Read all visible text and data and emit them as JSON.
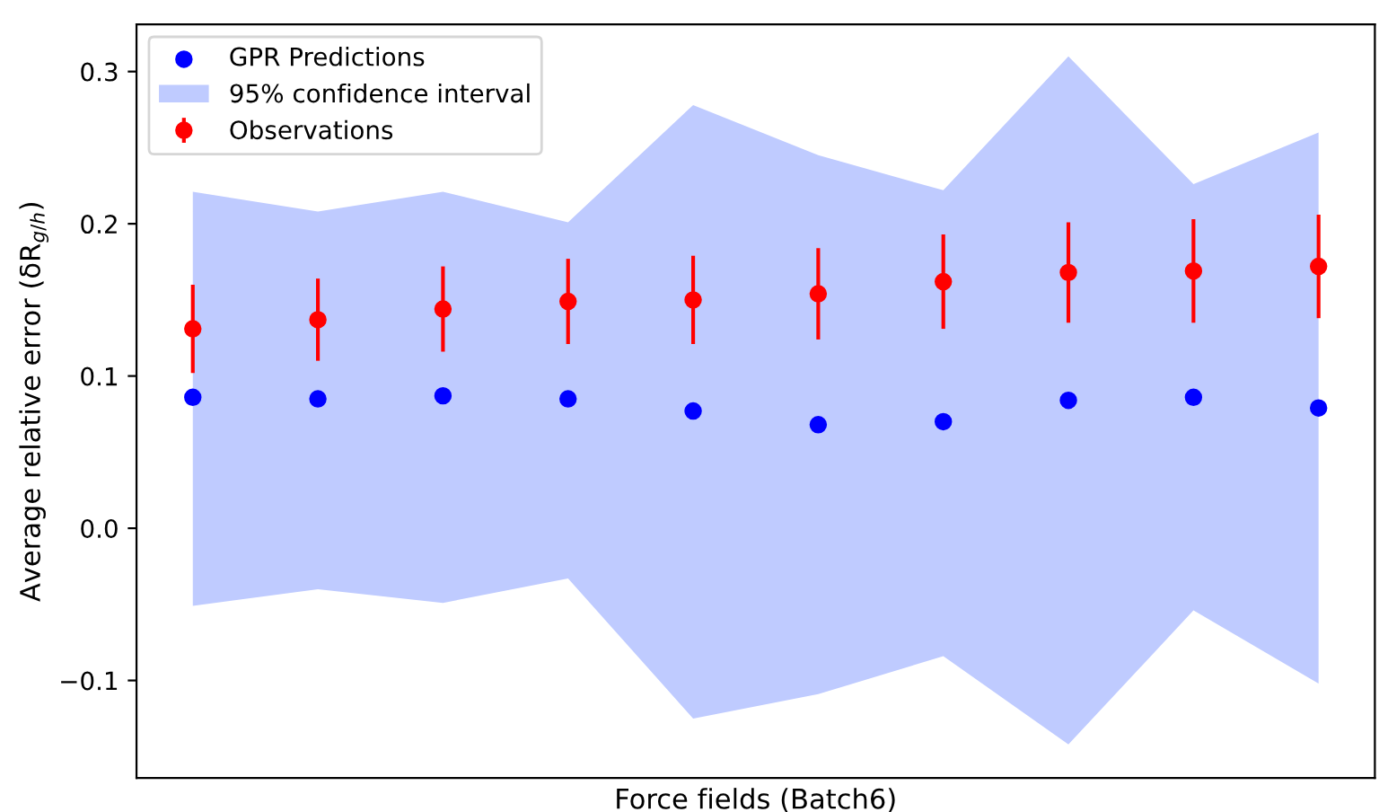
{
  "chart_data": {
    "type": "scatter",
    "xlabel": "Force fields (Batch6)",
    "ylabel": "Average relative error (δR$_{g/h}$)",
    "categories": [
      null,
      null,
      null,
      null,
      null,
      null,
      null,
      null,
      null,
      null
    ],
    "series": [
      {
        "name": "GPR Predictions",
        "color": "#0000ff",
        "marker": "circle",
        "values": [
          0.086,
          0.085,
          0.087,
          0.085,
          0.077,
          0.068,
          0.07,
          0.084,
          0.086,
          0.079
        ]
      },
      {
        "type": "area",
        "name": "95% confidence interval",
        "color": "#bfcbff",
        "values": [
          null,
          null,
          null,
          null,
          null,
          null,
          null,
          null,
          null,
          null
        ],
        "lower": [
          -0.051,
          -0.04,
          -0.049,
          -0.033,
          -0.125,
          -0.109,
          -0.084,
          -0.142,
          -0.054,
          -0.102
        ],
        "upper": [
          0.221,
          0.208,
          0.221,
          0.201,
          0.278,
          0.245,
          0.222,
          0.31,
          0.226,
          0.26
        ]
      },
      {
        "name": "Observations",
        "color": "#ff0000",
        "marker": "circle",
        "values": [
          0.131,
          0.137,
          0.144,
          0.149,
          0.15,
          0.154,
          0.162,
          0.168,
          0.169,
          0.172
        ],
        "errors": [
          0.029,
          0.027,
          0.028,
          0.028,
          0.029,
          0.03,
          0.031,
          0.033,
          0.034,
          0.034
        ]
      }
    ],
    "ylim": [
      -0.164,
      0.331
    ],
    "yticks": [
      {
        "value": -0.1,
        "label": "−0.1"
      },
      {
        "value": 0,
        "label": "0.0"
      },
      0.1,
      0.2,
      0.3
    ],
    "tick_labels": "y",
    "legend": "top left",
    "grid": false
  }
}
